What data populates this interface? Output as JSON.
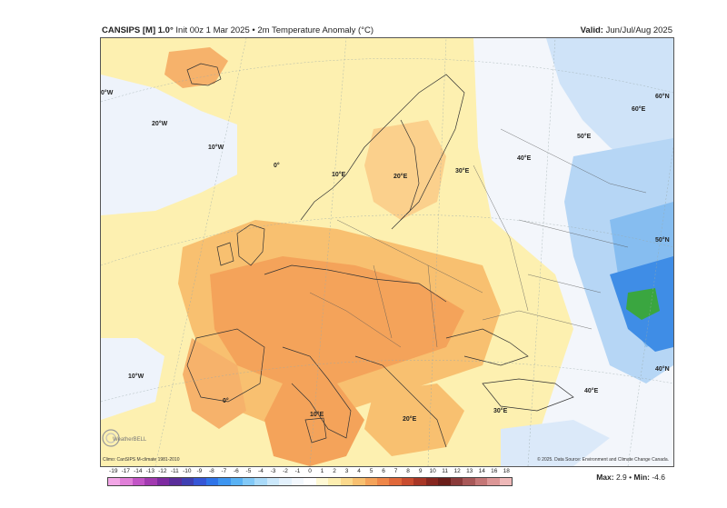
{
  "header": {
    "model": "CANSIPS [M] 1.0°",
    "description": "Init 00z 1 Mar 2025 • 2m Temperature Anomaly (°C)",
    "valid_label": "Valid:",
    "valid_value": "Jun/Jul/Aug 2025"
  },
  "footnotes": {
    "climatology": "Climo: CanSIPS M-climate 1981-2010",
    "source": "© 2025. Data Source: Environment and Climate Change Canada."
  },
  "stats": {
    "max_label": "Max:",
    "max_value": "2.9",
    "separator": "•",
    "min_label": "Min:",
    "min_value": "-4.6"
  },
  "coordinate_labels": [
    "0°W",
    "20°W",
    "10°W",
    "0°",
    "10°E",
    "20°E",
    "30°E",
    "40°E",
    "50°E",
    "60°E",
    "60°N",
    "50°N",
    "40°N",
    "10°W",
    "0°",
    "10°E",
    "20°E",
    "30°E",
    "40°E"
  ],
  "colorbar": {
    "ticks": [
      "-19",
      "-17",
      "-14",
      "-13",
      "-12",
      "-11",
      "-10",
      "-9",
      "-8",
      "-7",
      "-6",
      "-5",
      "-4",
      "-3",
      "-2",
      "-1",
      "0",
      "1",
      "2",
      "3",
      "4",
      "5",
      "6",
      "7",
      "8",
      "9",
      "10",
      "11",
      "12",
      "13",
      "14",
      "16",
      "18"
    ],
    "colors": [
      "#f2a6e6",
      "#e07fd8",
      "#c255c6",
      "#a23ab0",
      "#7d2aa0",
      "#5a2d9a",
      "#3f3fb2",
      "#3656d6",
      "#2f74e8",
      "#3d95f0",
      "#59b2f4",
      "#82c9f7",
      "#a9daf9",
      "#cbe8fb",
      "#e3f1fc",
      "#f3f8fd",
      "#ffffff",
      "#fff9d4",
      "#fdeeb0",
      "#fbd98c",
      "#f8c070",
      "#f4a35a",
      "#ee8648",
      "#e0683a",
      "#c94c2f",
      "#a83626",
      "#86261f",
      "#6a1e1a",
      "#8a3a3a",
      "#a85858",
      "#c47676",
      "#dc9696",
      "#eeb8b8"
    ]
  },
  "map": {
    "anomaly_positive_color": "#f6b26b",
    "anomaly_strong_color": "#f0995a",
    "anomaly_weak_color": "#fdf0b0",
    "anomaly_neutral_color": "#eef3fb",
    "anomaly_negative_color": "#9cc7f2",
    "anomaly_strong_negative_color": "#3f8de6",
    "min_anomaly_color": "#3aa640"
  },
  "brand_text": "WeatherBELL"
}
